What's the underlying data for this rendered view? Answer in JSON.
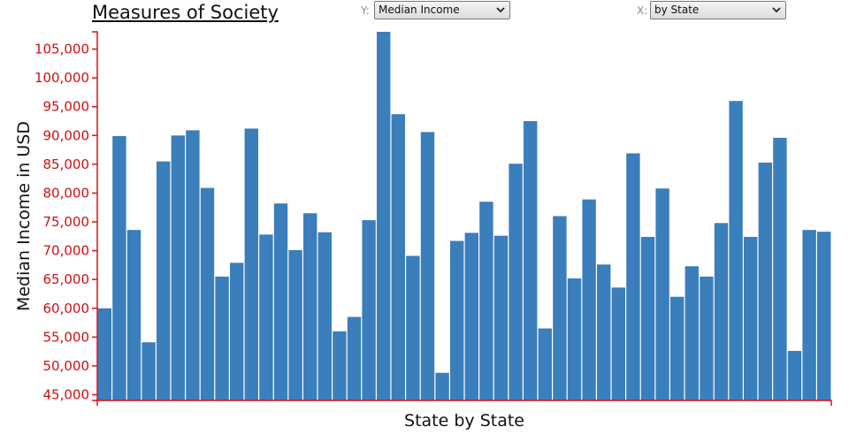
{
  "title": "Measures of Society",
  "controls": {
    "y_label": "Y:",
    "y_value": "Median Income",
    "x_label": "X:",
    "x_value": "by State"
  },
  "colors": {
    "bar": "#3a7ebb",
    "axis": "#dd1111",
    "tick_text": "#cc1111"
  },
  "chart_data": {
    "type": "bar",
    "title": "Measures of Society",
    "xlabel": "State by State",
    "ylabel": "Median Income in USD",
    "ylim": [
      44000,
      108000
    ],
    "yticks": [
      45000,
      50000,
      55000,
      60000,
      65000,
      70000,
      75000,
      80000,
      85000,
      90000,
      95000,
      100000,
      105000
    ],
    "ytick_labels": [
      "45,000",
      "50,000",
      "55,000",
      "60,000",
      "65,000",
      "70,000",
      "75,000",
      "80,000",
      "85,000",
      "90,000",
      "95,000",
      "100,000",
      "105,000"
    ],
    "grid": false,
    "values": [
      60000,
      89900,
      73600,
      54100,
      85500,
      90000,
      90900,
      80900,
      65500,
      67900,
      91200,
      72800,
      78200,
      70100,
      76500,
      73200,
      56000,
      58500,
      75300,
      108000,
      93700,
      69100,
      90600,
      48800,
      71700,
      73100,
      78500,
      72600,
      85100,
      92500,
      56500,
      76000,
      65200,
      78900,
      67600,
      63600,
      86900,
      72400,
      80800,
      62000,
      67300,
      65500,
      74800,
      96000,
      72400,
      85300,
      89600,
      52600,
      73600,
      73300
    ]
  }
}
